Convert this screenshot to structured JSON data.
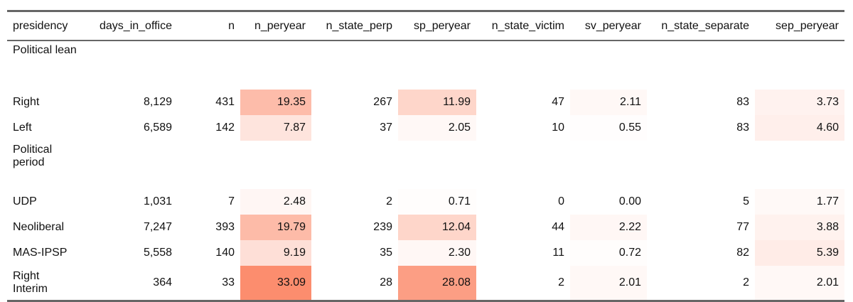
{
  "columns": [
    {
      "key": "presidency",
      "label": "presidency",
      "align": "left"
    },
    {
      "key": "days_in_office",
      "label": "days_in_office",
      "align": "right"
    },
    {
      "key": "n",
      "label": "n",
      "align": "right"
    },
    {
      "key": "n_peryear",
      "label": "n_peryear",
      "align": "right"
    },
    {
      "key": "n_state_perp",
      "label": "n_state_perp",
      "align": "right"
    },
    {
      "key": "sp_peryear",
      "label": "sp_peryear",
      "align": "right"
    },
    {
      "key": "n_state_victim",
      "label": "n_state_victim",
      "align": "right"
    },
    {
      "key": "sv_peryear",
      "label": "sv_peryear",
      "align": "right"
    },
    {
      "key": "n_state_separate",
      "label": "n_state_separate",
      "align": "right"
    },
    {
      "key": "sep_peryear",
      "label": "sep_peryear",
      "align": "right"
    }
  ],
  "heat": {
    "color_low": "#ffffff",
    "color_high": "#fc8d6e",
    "max_value": 33.09
  },
  "rows": [
    {
      "type": "group",
      "label": "Political lean"
    },
    {
      "type": "data",
      "cells": [
        "Right",
        "8,129",
        "431",
        "19.35",
        "267",
        "11.99",
        "47",
        "2.11",
        "83",
        "3.73"
      ],
      "shade": [
        null,
        null,
        null,
        19.35,
        null,
        11.99,
        null,
        2.11,
        null,
        3.73
      ]
    },
    {
      "type": "data",
      "cells": [
        "Left",
        "6,589",
        "142",
        "7.87",
        "37",
        "2.05",
        "10",
        "0.55",
        "83",
        "4.60"
      ],
      "shade": [
        null,
        null,
        null,
        7.87,
        null,
        2.05,
        null,
        0.55,
        null,
        4.6
      ]
    },
    {
      "type": "group",
      "label": "Political period"
    },
    {
      "type": "data",
      "cells": [
        "UDP",
        "1,031",
        "7",
        "2.48",
        "2",
        "0.71",
        "0",
        "0.00",
        "5",
        "1.77"
      ],
      "shade": [
        null,
        null,
        null,
        2.48,
        null,
        0.71,
        null,
        0.0,
        null,
        1.77
      ]
    },
    {
      "type": "data",
      "cells": [
        "Neoliberal",
        "7,247",
        "393",
        "19.79",
        "239",
        "12.04",
        "44",
        "2.22",
        "77",
        "3.88"
      ],
      "shade": [
        null,
        null,
        null,
        19.79,
        null,
        12.04,
        null,
        2.22,
        null,
        3.88
      ]
    },
    {
      "type": "data",
      "cells": [
        "MAS-IPSP",
        "5,558",
        "140",
        "9.19",
        "35",
        "2.30",
        "11",
        "0.72",
        "82",
        "5.39"
      ],
      "shade": [
        null,
        null,
        null,
        9.19,
        null,
        2.3,
        null,
        0.72,
        null,
        5.39
      ]
    },
    {
      "type": "tall",
      "cells": [
        "Right Interim",
        "364",
        "33",
        "33.09",
        "28",
        "28.08",
        "2",
        "2.01",
        "2",
        "2.01"
      ],
      "shade": [
        null,
        null,
        null,
        33.09,
        null,
        28.08,
        null,
        2.01,
        null,
        2.01
      ]
    }
  ]
}
